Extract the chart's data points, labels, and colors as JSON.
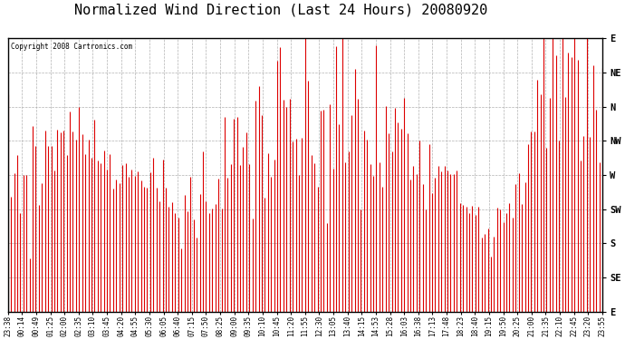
{
  "title": "Normalized Wind Direction (Last 24 Hours) 20080920",
  "copyright": "Copyright 2008 Cartronics.com",
  "line_color": "#dd0000",
  "bg_color": "#ffffff",
  "grid_color": "#aaaaaa",
  "ytick_labels_right": [
    "E",
    "NE",
    "N",
    "NW",
    "W",
    "SW",
    "S",
    "SE",
    "E"
  ],
  "ytick_values": [
    8,
    7,
    6,
    5,
    4,
    3,
    2,
    1,
    0
  ],
  "xtick_labels": [
    "23:38",
    "00:14",
    "00:49",
    "01:25",
    "02:00",
    "02:35",
    "03:10",
    "03:45",
    "04:20",
    "04:55",
    "05:30",
    "06:05",
    "06:40",
    "07:15",
    "07:50",
    "08:25",
    "09:00",
    "09:35",
    "10:10",
    "10:45",
    "11:20",
    "11:55",
    "12:30",
    "13:05",
    "13:40",
    "14:15",
    "14:53",
    "15:28",
    "16:03",
    "16:38",
    "17:13",
    "17:48",
    "18:23",
    "18:40",
    "19:15",
    "19:50",
    "20:25",
    "21:00",
    "21:35",
    "22:10",
    "22:45",
    "23:20",
    "23:55"
  ],
  "ylim": [
    0,
    8
  ],
  "title_fontsize": 11,
  "xtick_fontsize": 5.5,
  "ytick_fontsize": 7.5,
  "figwidth": 6.9,
  "figheight": 3.75,
  "dpi": 100
}
